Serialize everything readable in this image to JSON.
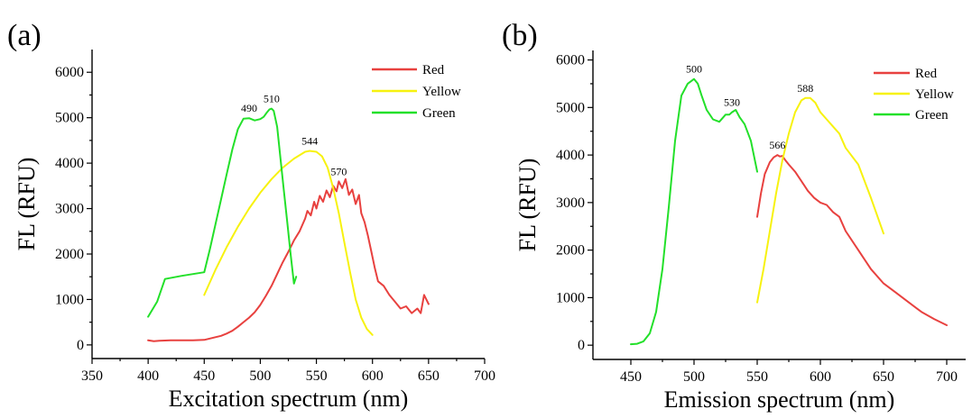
{
  "chart_data": [
    {
      "panel_label": "(a)",
      "type": "line",
      "xlabel": "Excitation spectrum (nm)",
      "ylabel": "FL (RFU)",
      "xlim": [
        350,
        700
      ],
      "ylim": [
        -300,
        6500
      ],
      "xticks": [
        350,
        400,
        450,
        500,
        550,
        600,
        650,
        700
      ],
      "yticks": [
        0,
        1000,
        2000,
        3000,
        4000,
        5000,
        6000
      ],
      "legend_position": "top-right",
      "series": [
        {
          "name": "Red",
          "color": "#e8413f",
          "x": [
            400,
            405,
            410,
            420,
            430,
            440,
            450,
            455,
            460,
            465,
            470,
            475,
            480,
            485,
            490,
            495,
            500,
            505,
            510,
            515,
            520,
            525,
            530,
            535,
            540,
            542,
            545,
            548,
            550,
            553,
            556,
            559,
            562,
            565,
            568,
            570,
            573,
            576,
            579,
            582,
            585,
            588,
            590,
            593,
            596,
            599,
            602,
            605,
            610,
            615,
            620,
            625,
            630,
            635,
            640,
            643,
            646,
            650
          ],
          "y": [
            100,
            80,
            90,
            100,
            100,
            100,
            110,
            140,
            170,
            200,
            250,
            310,
            400,
            500,
            600,
            720,
            880,
            1080,
            1300,
            1560,
            1820,
            2050,
            2300,
            2500,
            2780,
            2950,
            2850,
            3150,
            3000,
            3280,
            3150,
            3400,
            3250,
            3500,
            3380,
            3600,
            3450,
            3650,
            3300,
            3420,
            3100,
            3300,
            2900,
            2700,
            2400,
            2050,
            1700,
            1400,
            1300,
            1100,
            950,
            800,
            850,
            700,
            800,
            700,
            1100,
            900
          ]
        },
        {
          "name": "Yellow",
          "color": "#f7f20f",
          "x": [
            450,
            460,
            470,
            480,
            490,
            500,
            510,
            520,
            530,
            540,
            544,
            550,
            555,
            560,
            565,
            570,
            575,
            580,
            585,
            590,
            595,
            600
          ],
          "y": [
            1100,
            1650,
            2150,
            2600,
            3000,
            3350,
            3650,
            3900,
            4100,
            4250,
            4270,
            4250,
            4150,
            3900,
            3450,
            2900,
            2250,
            1600,
            1000,
            600,
            350,
            220
          ]
        },
        {
          "name": "Green",
          "color": "#23e02a",
          "x": [
            400,
            408,
            415,
            430,
            450,
            455,
            460,
            465,
            470,
            475,
            480,
            485,
            490,
            495,
            500,
            503,
            506,
            508,
            510,
            512,
            515,
            518,
            521,
            524,
            527,
            530,
            532
          ],
          "y": [
            620,
            950,
            1450,
            1520,
            1600,
            2100,
            2650,
            3200,
            3750,
            4300,
            4750,
            4980,
            4990,
            4940,
            4970,
            5020,
            5120,
            5180,
            5200,
            5150,
            4800,
            4100,
            3400,
            2700,
            2000,
            1350,
            1500
          ]
        }
      ],
      "annotations": [
        {
          "text": "490",
          "x": 490,
          "y": 4990
        },
        {
          "text": "510",
          "x": 510,
          "y": 5200
        },
        {
          "text": "544",
          "x": 544,
          "y": 4270
        },
        {
          "text": "570",
          "x": 570,
          "y": 3600
        }
      ]
    },
    {
      "panel_label": "(b)",
      "type": "line",
      "xlabel": "Emission spectrum (nm)",
      "ylabel": "FL (RFU)",
      "xlim": [
        420,
        715
      ],
      "ylim": [
        -300,
        6200
      ],
      "xticks": [
        450,
        500,
        550,
        600,
        650,
        700
      ],
      "yticks": [
        0,
        1000,
        2000,
        3000,
        4000,
        5000,
        6000
      ],
      "legend_position": "top-right",
      "series": [
        {
          "name": "Red",
          "color": "#e8413f",
          "x": [
            550,
            553,
            556,
            560,
            563,
            566,
            568,
            570,
            572,
            575,
            580,
            585,
            590,
            595,
            600,
            605,
            610,
            615,
            620,
            630,
            640,
            650,
            660,
            670,
            680,
            690,
            700
          ],
          "y": [
            2700,
            3200,
            3600,
            3850,
            3950,
            4000,
            3970,
            3980,
            3900,
            3800,
            3650,
            3450,
            3250,
            3100,
            3000,
            2950,
            2800,
            2700,
            2400,
            2000,
            1600,
            1300,
            1100,
            900,
            700,
            550,
            420
          ]
        },
        {
          "name": "Yellow",
          "color": "#f7f20f",
          "x": [
            550,
            555,
            560,
            565,
            570,
            575,
            580,
            585,
            588,
            592,
            596,
            600,
            605,
            610,
            615,
            620,
            630,
            640,
            650
          ],
          "y": [
            900,
            1600,
            2400,
            3200,
            3900,
            4450,
            4900,
            5150,
            5200,
            5200,
            5100,
            4900,
            4750,
            4600,
            4450,
            4150,
            3800,
            3100,
            2350
          ]
        },
        {
          "name": "Green",
          "color": "#23e02a",
          "x": [
            450,
            455,
            460,
            465,
            470,
            475,
            480,
            485,
            490,
            495,
            500,
            503,
            506,
            510,
            515,
            520,
            525,
            528,
            530,
            533,
            536,
            540,
            545,
            550
          ],
          "y": [
            20,
            30,
            80,
            250,
            700,
            1600,
            2900,
            4300,
            5250,
            5500,
            5600,
            5500,
            5250,
            4950,
            4750,
            4700,
            4850,
            4850,
            4900,
            4950,
            4800,
            4650,
            4300,
            3650
          ]
        }
      ],
      "annotations": [
        {
          "text": "500",
          "x": 500,
          "y": 5600
        },
        {
          "text": "530",
          "x": 530,
          "y": 4900
        },
        {
          "text": "566",
          "x": 566,
          "y": 4000
        },
        {
          "text": "588",
          "x": 588,
          "y": 5200
        }
      ]
    }
  ]
}
